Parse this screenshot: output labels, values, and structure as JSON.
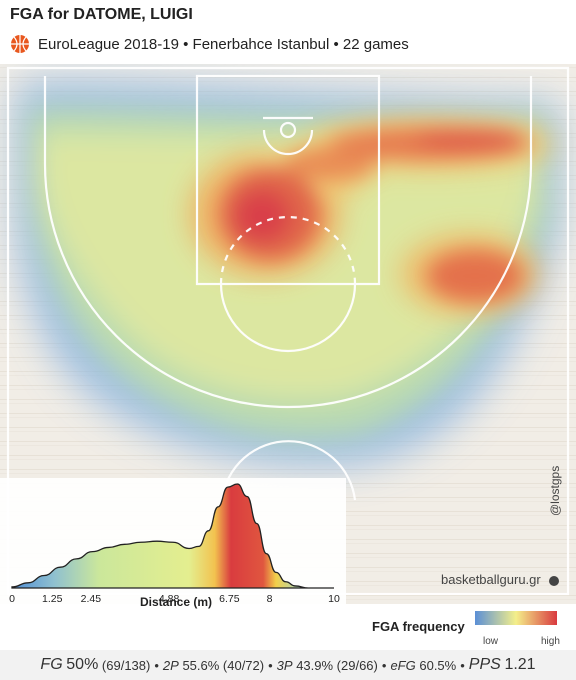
{
  "header": {
    "title": "FGA for DATOME, LUIGI",
    "subtitle": "EuroLeague 2018-19 • Fenerbahce Istanbul • 22 games"
  },
  "watermark": {
    "site": "basketballguru.gr",
    "handle": "@lostgps"
  },
  "legend": {
    "title": "FGA frequency",
    "low": "low",
    "high": "high",
    "colors": [
      "#5b8fd6",
      "#f4ef8a",
      "#d93a3f"
    ]
  },
  "stats": {
    "fg_label": "FG",
    "fg_pct": "50%",
    "fg_counts": "(69/138)",
    "p2_label": "2P",
    "p2_text": "55.6% (40/72)",
    "p3_label": "3P",
    "p3_text": "43.9% (29/66)",
    "efg_label": "eFG",
    "efg_text": "60.5%",
    "pps_label": "PPS",
    "pps_value": "1.21",
    "bullet": "•"
  },
  "chart_data": [
    {
      "type": "heatmap",
      "title": "FGA for DATOME, LUIGI",
      "subtitle": "EuroLeague 2018-19 • Fenerbahce Istanbul • 22 games",
      "description_levels": [
        "low",
        "high"
      ],
      "hotspots": [
        {
          "zone": "left elbow / mid-range",
          "level": "high"
        },
        {
          "zone": "right wing three",
          "level": "high"
        },
        {
          "zone": "right top three",
          "level": "high"
        },
        {
          "zone": "left wing three",
          "level": "medium"
        },
        {
          "zone": "left corner three",
          "level": "low"
        },
        {
          "zone": "right corner three",
          "level": "low"
        }
      ]
    },
    {
      "type": "area",
      "xlabel": "Distance (m)",
      "ylabel": "",
      "xlim": [
        0,
        10
      ],
      "xticks": [
        0,
        1.25,
        2.45,
        4.88,
        6.75,
        8,
        10
      ],
      "xtick_labels": [
        "0",
        "1.25",
        "2.45",
        "4.88",
        "6.75",
        "8",
        "10"
      ],
      "x": [
        0,
        0.5,
        1,
        1.5,
        2,
        2.5,
        3,
        3.5,
        4,
        4.5,
        5,
        5.5,
        5.8,
        6.1,
        6.4,
        6.7,
        7,
        7.3,
        7.6,
        7.9,
        8.2,
        8.5,
        8.8,
        9.2,
        9.6,
        10
      ],
      "y": [
        0.01,
        0.05,
        0.12,
        0.2,
        0.28,
        0.35,
        0.39,
        0.42,
        0.44,
        0.45,
        0.44,
        0.38,
        0.4,
        0.55,
        0.78,
        0.97,
        1.0,
        0.88,
        0.62,
        0.33,
        0.15,
        0.06,
        0.02,
        0.0,
        0.0,
        0.0
      ]
    }
  ]
}
